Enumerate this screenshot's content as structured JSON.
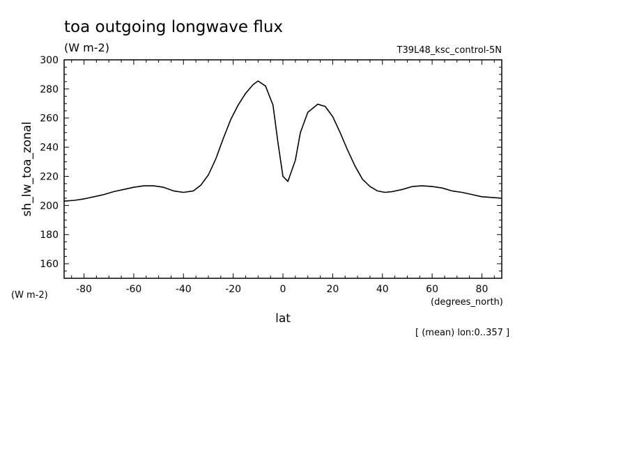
{
  "chart_data": {
    "type": "line",
    "title": "toa outgoing longwave flux",
    "subtitle": "(W m-2)",
    "run_label": "T39L48_ksc_control-5N",
    "xlabel": "lat",
    "xunits": "(degrees_north)",
    "ylabel": "sh_lw_toa_zonal",
    "yunits": "(W m-2)",
    "footnote": "[ (mean) lon:0..357 ]",
    "xlim": [
      -88,
      88
    ],
    "ylim": [
      150,
      300
    ],
    "xticks": [
      "-80",
      "-60",
      "-40",
      "-20",
      "0",
      "20",
      "40",
      "60",
      "80"
    ],
    "yticks": [
      "160",
      "180",
      "200",
      "220",
      "240",
      "260",
      "280",
      "300"
    ],
    "grid": false,
    "series": [
      {
        "x": [
          -88,
          -84,
          -80,
          -76,
          -72,
          -68,
          -64,
          -60,
          -56,
          -52,
          -48,
          -44,
          -40,
          -36,
          -33,
          -30,
          -27,
          -24,
          -21,
          -18,
          -15,
          -12,
          -10,
          -7,
          -4,
          -2,
          0,
          2,
          5,
          7,
          10,
          14,
          17,
          20,
          23,
          26,
          29,
          32,
          35,
          38,
          41,
          44,
          48,
          52,
          56,
          60,
          64,
          68,
          72,
          76,
          80,
          84,
          88
        ],
        "y": [
          203,
          203.5,
          204.5,
          206,
          207.5,
          209.5,
          211,
          212.5,
          213.5,
          213.5,
          212.5,
          210,
          209,
          210,
          214,
          221,
          232,
          246,
          259,
          269,
          277,
          283,
          285.5,
          282,
          269,
          243,
          220,
          216.5,
          231,
          250,
          264,
          269.5,
          268,
          261,
          250,
          238,
          227,
          218,
          213,
          210,
          209,
          209.5,
          211,
          213,
          213.5,
          213,
          212,
          210,
          209,
          207.5,
          206,
          205.5,
          205
        ]
      }
    ]
  }
}
